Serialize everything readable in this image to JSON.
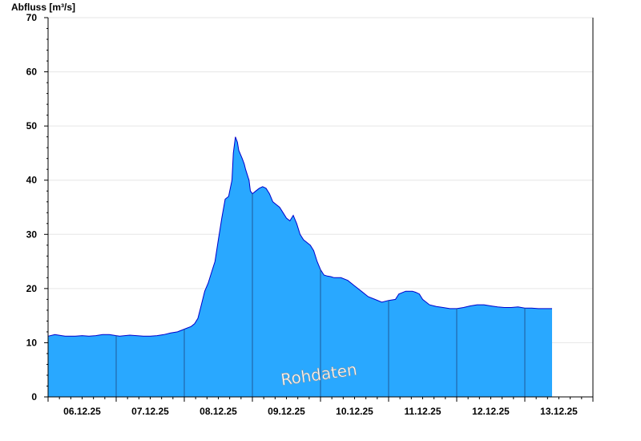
{
  "chart_data": {
    "type": "area",
    "ylabel": "Abfluss [m³/s]",
    "ylim": [
      0,
      70
    ],
    "yticks": [
      0,
      10,
      20,
      30,
      40,
      50,
      60,
      70
    ],
    "xlim": [
      0,
      8
    ],
    "xtick_labels": [
      "06.12.25",
      "07.12.25",
      "08.12.25",
      "09.12.25",
      "10.12.25",
      "11.12.25",
      "12.12.25",
      "13.12.25"
    ],
    "day_boundaries": [
      1,
      2,
      3,
      4,
      5,
      6,
      7
    ],
    "grid": true,
    "annotation": "Rohdaten",
    "fill_color": "#29a8ff",
    "line_color": "#0000cc",
    "series": [
      {
        "x": [
          0,
          0.1,
          0.2,
          0.25,
          0.4,
          0.5,
          0.6,
          0.7,
          0.8,
          0.9,
          1.0,
          1.05,
          1.2,
          1.3,
          1.4,
          1.5,
          1.6,
          1.7,
          1.8,
          1.9,
          2.0,
          2.1,
          2.15,
          2.2,
          2.25,
          2.3,
          2.35,
          2.4,
          2.45,
          2.5,
          2.55,
          2.6,
          2.65,
          2.7,
          2.72,
          2.75,
          2.78,
          2.8,
          2.85,
          2.88,
          2.9,
          2.95,
          2.97,
          3.0,
          3.05,
          3.1,
          3.15,
          3.2,
          3.25,
          3.3,
          3.35,
          3.4,
          3.45,
          3.5,
          3.55,
          3.6,
          3.65,
          3.7,
          3.75,
          3.8,
          3.85,
          3.9,
          3.95,
          4.0,
          4.05,
          4.1,
          4.15,
          4.2,
          4.25,
          4.3,
          4.4,
          4.5,
          4.6,
          4.7,
          4.8,
          4.9,
          5.0,
          5.1,
          5.15,
          5.25,
          5.35,
          5.4,
          5.45,
          5.5,
          5.6,
          5.7,
          5.8,
          5.9,
          6.0,
          6.1,
          6.2,
          6.3,
          6.4,
          6.5,
          6.6,
          6.7,
          6.8,
          6.9,
          7.0,
          7.1,
          7.2,
          7.3,
          7.4
        ],
        "y": [
          11.2,
          11.5,
          11.3,
          11.2,
          11.2,
          11.3,
          11.2,
          11.3,
          11.5,
          11.5,
          11.3,
          11.2,
          11.4,
          11.3,
          11.2,
          11.2,
          11.3,
          11.5,
          11.8,
          12.0,
          12.5,
          13.0,
          13.5,
          14.5,
          17.0,
          19.5,
          21.0,
          23.0,
          25.0,
          29.0,
          33.0,
          36.5,
          37.0,
          40.0,
          45.0,
          48.0,
          47.0,
          45.5,
          44.0,
          43.0,
          42.0,
          40.0,
          38.0,
          37.5,
          38.0,
          38.5,
          38.8,
          38.5,
          37.5,
          36.0,
          35.5,
          35.0,
          34.0,
          33.0,
          32.5,
          33.5,
          32.0,
          30.0,
          29.0,
          28.5,
          28.0,
          27.0,
          25.0,
          23.5,
          22.5,
          22.3,
          22.2,
          22.0,
          22.0,
          22.0,
          21.5,
          20.5,
          19.5,
          18.5,
          18.0,
          17.5,
          17.8,
          18.0,
          19.0,
          19.5,
          19.5,
          19.3,
          19.0,
          18.0,
          17.0,
          16.7,
          16.5,
          16.3,
          16.3,
          16.5,
          16.8,
          17.0,
          17.0,
          16.8,
          16.6,
          16.5,
          16.5,
          16.6,
          16.4,
          16.4,
          16.3,
          16.3,
          16.3
        ]
      }
    ]
  }
}
